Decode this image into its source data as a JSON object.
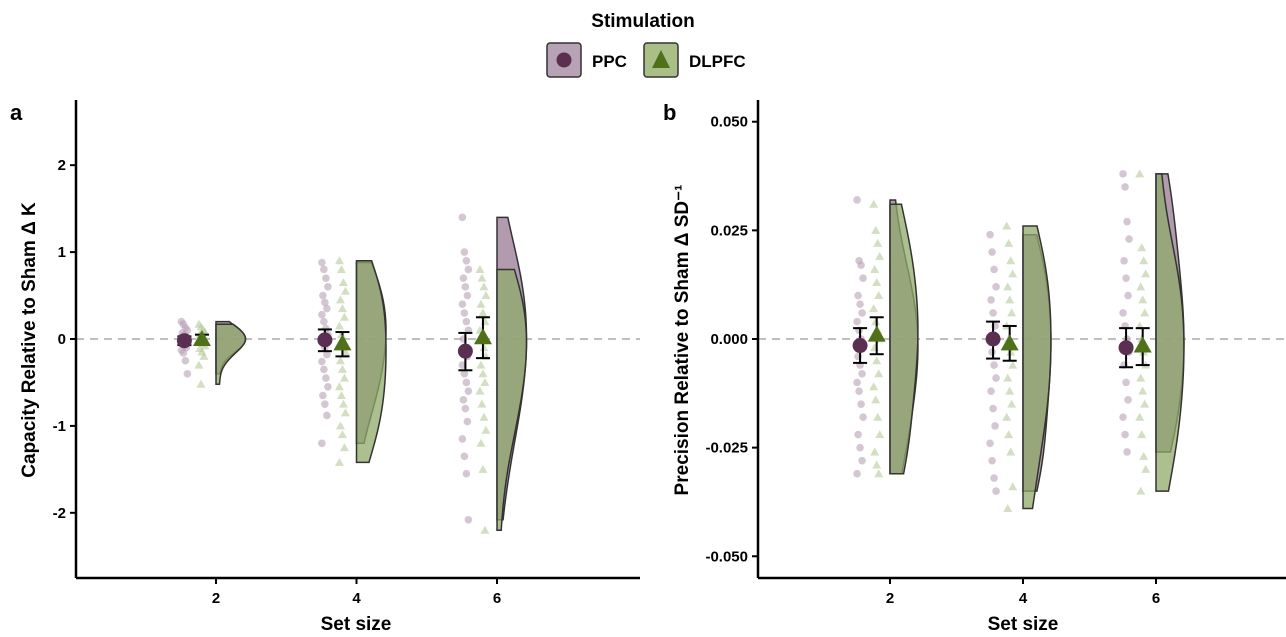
{
  "legend": {
    "title": "Stimulation",
    "items": [
      {
        "label": "PPC",
        "marker": "circle",
        "color": "#5a2f52",
        "fill": "#b8a2b5"
      },
      {
        "label": "DLPFC",
        "marker": "triangle",
        "color": "#4e7119",
        "fill": "#a9bf87"
      }
    ]
  },
  "chart_data": [
    {
      "type": "scatter",
      "panel_label": "a",
      "xlabel": "Set size",
      "ylabel": "Capacity Relative to Sham Δ K",
      "x_ticks": [
        2,
        4,
        6
      ],
      "y_ticks": [
        2,
        1,
        0,
        -1,
        -2
      ],
      "y_tick_labels": [
        "2",
        "1",
        "0",
        "-1",
        "-2"
      ],
      "ylim": [
        -2.75,
        2.75
      ],
      "reference_line": 0,
      "series": [
        {
          "name": "PPC",
          "points": [
            {
              "set_size": 2,
              "mean": -0.02,
              "ci_low": -0.07,
              "ci_high": 0.03,
              "raw": [
                0.2,
                0.17,
                0.13,
                0.1,
                0.07,
                0.05,
                0.03,
                0.02,
                0.0,
                -0.02,
                -0.04,
                -0.06,
                -0.08,
                -0.1,
                -0.13,
                -0.16,
                -0.25,
                -0.4
              ]
            },
            {
              "set_size": 4,
              "mean": -0.01,
              "ci_low": -0.14,
              "ci_high": 0.11,
              "raw": [
                0.88,
                0.8,
                0.7,
                0.6,
                0.5,
                0.42,
                0.35,
                0.28,
                0.2,
                0.12,
                0.05,
                -0.02,
                -0.1,
                -0.18,
                -0.26,
                -0.35,
                -0.45,
                -0.55,
                -0.65,
                -0.75,
                -0.88,
                -1.2
              ]
            },
            {
              "set_size": 6,
              "mean": -0.14,
              "ci_low": -0.36,
              "ci_high": 0.07,
              "raw": [
                1.4,
                1.0,
                0.9,
                0.8,
                0.7,
                0.6,
                0.5,
                0.4,
                0.3,
                0.2,
                0.1,
                0.0,
                -0.1,
                -0.2,
                -0.3,
                -0.4,
                -0.5,
                -0.6,
                -0.7,
                -0.8,
                -0.95,
                -1.15,
                -1.35,
                -1.55,
                -2.08
              ]
            }
          ]
        },
        {
          "name": "DLPFC",
          "points": [
            {
              "set_size": 2,
              "mean": 0.0,
              "ci_low": -0.05,
              "ci_high": 0.05,
              "raw": [
                0.17,
                0.14,
                0.11,
                0.08,
                0.05,
                0.03,
                0.01,
                -0.01,
                -0.03,
                -0.05,
                -0.08,
                -0.11,
                -0.15,
                -0.2,
                -0.3,
                -0.52
              ]
            },
            {
              "set_size": 4,
              "mean": -0.05,
              "ci_low": -0.2,
              "ci_high": 0.08,
              "raw": [
                0.9,
                0.8,
                0.65,
                0.55,
                0.45,
                0.35,
                0.25,
                0.15,
                0.05,
                -0.05,
                -0.15,
                -0.25,
                -0.35,
                -0.45,
                -0.55,
                -0.65,
                -0.75,
                -0.85,
                -1.0,
                -1.1,
                -1.25,
                -1.42
              ]
            },
            {
              "set_size": 6,
              "mean": 0.02,
              "ci_low": -0.22,
              "ci_high": 0.25,
              "raw": [
                0.8,
                0.7,
                0.6,
                0.5,
                0.4,
                0.3,
                0.2,
                0.1,
                0.0,
                -0.1,
                -0.2,
                -0.3,
                -0.4,
                -0.5,
                -0.6,
                -0.75,
                -0.9,
                -1.05,
                -1.2,
                -1.5,
                -2.2
              ]
            }
          ]
        }
      ]
    },
    {
      "type": "scatter",
      "panel_label": "b",
      "xlabel": "Set size",
      "ylabel": "Precision Relative to Sham Δ SD⁻¹",
      "x_ticks": [
        2,
        4,
        6
      ],
      "y_ticks": [
        0.05,
        0.025,
        0.0,
        -0.025,
        -0.05
      ],
      "y_tick_labels": [
        "0.050",
        "0.025",
        "0.000",
        "-0.025",
        "-0.050"
      ],
      "ylim": [
        -0.055,
        0.055
      ],
      "reference_line": 0,
      "series": [
        {
          "name": "PPC",
          "points": [
            {
              "set_size": 2,
              "mean": -0.0015,
              "ci_low": -0.0055,
              "ci_high": 0.0025,
              "raw": [
                0.032,
                0.018,
                0.017,
                0.014,
                0.01,
                0.008,
                0.006,
                0.004,
                0.002,
                0.0,
                -0.002,
                -0.004,
                -0.006,
                -0.008,
                -0.01,
                -0.012,
                -0.015,
                -0.018,
                -0.022,
                -0.025,
                -0.028,
                -0.031
              ]
            },
            {
              "set_size": 4,
              "mean": 0.0,
              "ci_low": -0.0045,
              "ci_high": 0.004,
              "raw": [
                0.024,
                0.02,
                0.016,
                0.012,
                0.009,
                0.006,
                0.003,
                0.0,
                -0.003,
                -0.006,
                -0.009,
                -0.012,
                -0.016,
                -0.02,
                -0.024,
                -0.028,
                -0.032,
                -0.035
              ]
            },
            {
              "set_size": 6,
              "mean": -0.002,
              "ci_low": -0.0065,
              "ci_high": 0.0025,
              "raw": [
                0.038,
                0.035,
                0.027,
                0.023,
                0.018,
                0.014,
                0.01,
                0.006,
                0.003,
                0.0,
                -0.003,
                -0.006,
                -0.01,
                -0.014,
                -0.018,
                -0.022,
                -0.026
              ]
            }
          ]
        },
        {
          "name": "DLPFC",
          "points": [
            {
              "set_size": 2,
              "mean": 0.001,
              "ci_low": -0.0035,
              "ci_high": 0.005,
              "raw": [
                0.031,
                0.025,
                0.022,
                0.019,
                0.016,
                0.013,
                0.01,
                0.007,
                0.004,
                0.002,
                0.0,
                -0.002,
                -0.005,
                -0.008,
                -0.011,
                -0.014,
                -0.018,
                -0.022,
                -0.026,
                -0.029,
                -0.031
              ]
            },
            {
              "set_size": 4,
              "mean": -0.001,
              "ci_low": -0.005,
              "ci_high": 0.003,
              "raw": [
                0.026,
                0.022,
                0.018,
                0.015,
                0.012,
                0.009,
                0.006,
                0.003,
                0.0,
                -0.003,
                -0.006,
                -0.009,
                -0.012,
                -0.015,
                -0.018,
                -0.022,
                -0.026,
                -0.034,
                -0.039
              ]
            },
            {
              "set_size": 6,
              "mean": -0.0015,
              "ci_low": -0.006,
              "ci_high": 0.0025,
              "raw": [
                0.038,
                0.021,
                0.018,
                0.015,
                0.012,
                0.009,
                0.006,
                0.003,
                0.0,
                -0.003,
                -0.006,
                -0.009,
                -0.012,
                -0.015,
                -0.018,
                -0.022,
                -0.027,
                -0.03,
                -0.035
              ]
            }
          ]
        }
      ]
    }
  ]
}
